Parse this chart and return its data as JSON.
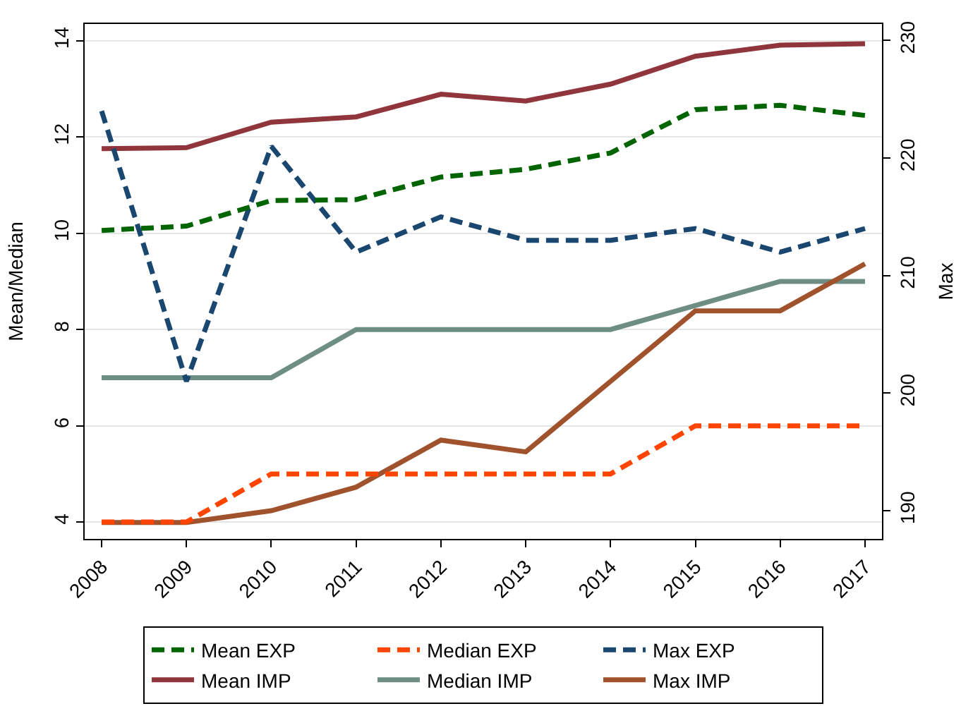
{
  "chart_data": {
    "type": "line",
    "ylabel": "Mean/Median",
    "y2label": "Max",
    "x": [
      2008,
      2009,
      2010,
      2011,
      2012,
      2013,
      2014,
      2015,
      2016,
      2017
    ],
    "xlim": [
      2007.8,
      2017.2
    ],
    "xticks": [
      2008,
      2009,
      2010,
      2011,
      2012,
      2013,
      2014,
      2015,
      2016,
      2017
    ],
    "ylim": [
      3.65,
      14.35
    ],
    "yticks": [
      4,
      6,
      8,
      10,
      12,
      14
    ],
    "y2lim": [
      187.6,
      231.4
    ],
    "y2ticks": [
      190,
      200,
      210,
      220,
      230
    ],
    "grid": "y",
    "legend": "bottom",
    "marker": "none",
    "series": [
      {
        "name": "Mean EXP",
        "color": "#006400",
        "line_style": "dashed",
        "values": [
          10.06,
          10.15,
          10.68,
          10.7,
          11.17,
          11.33,
          11.67,
          12.57,
          12.66,
          12.45
        ]
      },
      {
        "name": "Median EXP",
        "color": "#ff4500",
        "line_style": "dashed",
        "values": [
          4,
          4,
          5,
          5,
          5,
          5,
          5,
          6,
          6,
          6
        ]
      },
      {
        "name": "Max EXP",
        "color": "#1a476f",
        "line_style": "dashed",
        "axis": "y2",
        "values": [
          224,
          201,
          221,
          212,
          215,
          213,
          213,
          214,
          212,
          214
        ]
      },
      {
        "name": "Mean IMP",
        "color": "#90353b",
        "line_style": "solid",
        "values": [
          11.76,
          11.78,
          12.31,
          12.42,
          12.89,
          12.75,
          13.1,
          13.68,
          13.91,
          13.94
        ]
      },
      {
        "name": "Median IMP",
        "color": "#6e8e84",
        "line_style": "solid",
        "values": [
          7,
          7,
          7,
          8,
          8,
          8,
          8,
          8.5,
          9,
          9
        ]
      },
      {
        "name": "Max IMP",
        "color": "#a0522d",
        "line_style": "solid",
        "axis": "y2",
        "values": [
          189,
          189,
          190,
          192,
          196,
          195,
          201,
          207,
          207,
          211
        ]
      }
    ]
  }
}
